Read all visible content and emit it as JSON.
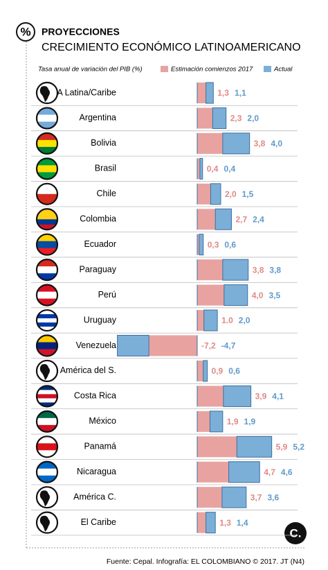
{
  "chart_data": {
    "type": "bar",
    "icon": "%",
    "title": "PROYECCIONES",
    "subtitle": "CRECIMIENTO ECONÓMICO LATINOAMERICANO",
    "y_label": "Tasa anual de variación del PIB (%)",
    "categories": [
      "A Latina/Caribe",
      "Argentina",
      "Bolivia",
      "Brasil",
      "Chile",
      "Colombia",
      "Ecuador",
      "Paraguay",
      "Perú",
      "Uruguay",
      "Venezuela",
      "América del S.",
      "Costa Rica",
      "México",
      "Panamá",
      "Nicaragua",
      "América C.",
      "El Caribe"
    ],
    "series": [
      {
        "name": "Estimación comienzos 2017",
        "color": "#e8a3a0",
        "values": [
          1.3,
          2.3,
          3.8,
          0.4,
          2.0,
          2.7,
          0.3,
          3.8,
          4.0,
          1.0,
          -7.2,
          0.9,
          3.9,
          1.9,
          5.9,
          4.7,
          3.7,
          1.3
        ],
        "value_labels": [
          "1,3",
          "2,3",
          "3,8",
          "0,4",
          "2,0",
          "2,7",
          "0,3",
          "3,8",
          "4,0",
          "1.0",
          "-7,2",
          "0,9",
          "3,9",
          "1,9",
          "5,9",
          "4,7",
          "3,7",
          "1,3"
        ]
      },
      {
        "name": "Actual",
        "color": "#7bafd8",
        "values": [
          1.1,
          2.0,
          4.0,
          0.4,
          1.5,
          2.4,
          0.6,
          3.8,
          3.5,
          2.0,
          -4.7,
          0.6,
          4.1,
          1.9,
          5.2,
          4.6,
          3.6,
          1.4
        ],
        "value_labels": [
          "1,1",
          "2,0",
          "4,0",
          "0,4",
          "1,5",
          "2,4",
          "0,6",
          "3,8",
          "3,5",
          "2,0",
          "-4,7",
          "0,6",
          "4,1",
          "1,9",
          "5,2",
          "4,6",
          "3,6",
          "1,4"
        ]
      }
    ],
    "source": "Fuente: Cepal. Infografía: EL COLOMBIANO © 2017. JT (N4)",
    "logo": "C."
  }
}
